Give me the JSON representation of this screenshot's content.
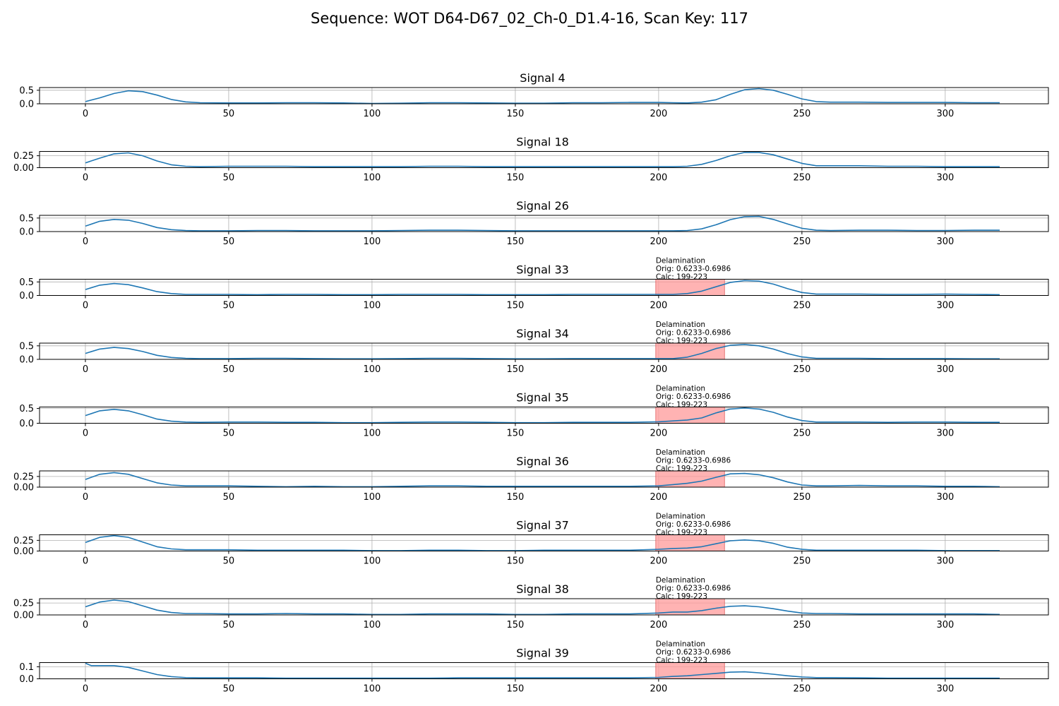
{
  "figure": {
    "title": "Sequence: WOT D64-D67_02_Ch-0_D1.4-16, Scan Key: 117"
  },
  "colors": {
    "line": "#1f77b4",
    "highlight_fill": "#ff9999",
    "highlight_stroke": "#e06060",
    "grid": "#b0b0b0",
    "axis": "#000000"
  },
  "chart_data": [
    {
      "type": "line",
      "title": "Signal 4",
      "xlim": [
        -16,
        336
      ],
      "ylim": [
        0,
        0.6
      ],
      "xticks": [
        0,
        50,
        100,
        150,
        200,
        250,
        300
      ],
      "yticks": [
        0.0,
        0.5
      ],
      "ytick_labels": [
        "0.0",
        "0.5"
      ],
      "grid": true,
      "x": [
        0,
        5,
        10,
        15,
        20,
        25,
        30,
        35,
        40,
        50,
        60,
        70,
        80,
        90,
        100,
        110,
        120,
        130,
        140,
        150,
        160,
        170,
        180,
        190,
        200,
        205,
        210,
        215,
        220,
        225,
        230,
        235,
        240,
        245,
        250,
        255,
        260,
        270,
        280,
        290,
        300,
        310,
        319
      ],
      "y": [
        0.08,
        0.22,
        0.38,
        0.48,
        0.45,
        0.32,
        0.16,
        0.07,
        0.04,
        0.03,
        0.03,
        0.04,
        0.04,
        0.03,
        0.01,
        0.02,
        0.04,
        0.04,
        0.03,
        0.02,
        0.02,
        0.04,
        0.04,
        0.05,
        0.05,
        0.04,
        0.03,
        0.06,
        0.15,
        0.35,
        0.52,
        0.56,
        0.5,
        0.35,
        0.18,
        0.08,
        0.06,
        0.06,
        0.05,
        0.05,
        0.05,
        0.04,
        0.04
      ],
      "annotation": null
    },
    {
      "type": "line",
      "title": "Signal 18",
      "xlim": [
        -16,
        336
      ],
      "ylim": [
        0,
        0.34
      ],
      "xticks": [
        0,
        50,
        100,
        150,
        200,
        250,
        300
      ],
      "yticks": [
        0.0,
        0.25
      ],
      "ytick_labels": [
        "0.00",
        "0.25"
      ],
      "grid": true,
      "x": [
        0,
        5,
        10,
        15,
        20,
        25,
        30,
        35,
        40,
        50,
        60,
        70,
        80,
        90,
        100,
        110,
        120,
        130,
        140,
        150,
        160,
        170,
        180,
        190,
        200,
        205,
        210,
        215,
        220,
        225,
        230,
        235,
        240,
        245,
        250,
        255,
        260,
        270,
        280,
        290,
        300,
        310,
        319
      ],
      "y": [
        0.1,
        0.2,
        0.29,
        0.31,
        0.25,
        0.14,
        0.06,
        0.03,
        0.02,
        0.03,
        0.03,
        0.03,
        0.02,
        0.02,
        0.02,
        0.02,
        0.03,
        0.03,
        0.02,
        0.02,
        0.02,
        0.02,
        0.02,
        0.02,
        0.02,
        0.02,
        0.03,
        0.07,
        0.15,
        0.25,
        0.32,
        0.32,
        0.27,
        0.18,
        0.09,
        0.04,
        0.04,
        0.04,
        0.03,
        0.03,
        0.02,
        0.02,
        0.02
      ],
      "annotation": null
    },
    {
      "type": "line",
      "title": "Signal 26",
      "xlim": [
        -16,
        336
      ],
      "ylim": [
        0,
        0.6
      ],
      "xticks": [
        0,
        50,
        100,
        150,
        200,
        250,
        300
      ],
      "yticks": [
        0.0,
        0.5
      ],
      "ytick_labels": [
        "0.0",
        "0.5"
      ],
      "grid": true,
      "x": [
        0,
        5,
        10,
        15,
        20,
        25,
        30,
        35,
        40,
        50,
        60,
        70,
        80,
        90,
        100,
        110,
        120,
        130,
        140,
        150,
        160,
        170,
        180,
        190,
        200,
        205,
        210,
        215,
        220,
        225,
        230,
        235,
        240,
        245,
        250,
        255,
        260,
        270,
        280,
        290,
        300,
        310,
        319
      ],
      "y": [
        0.2,
        0.38,
        0.45,
        0.42,
        0.3,
        0.15,
        0.07,
        0.04,
        0.03,
        0.03,
        0.04,
        0.04,
        0.03,
        0.03,
        0.03,
        0.04,
        0.05,
        0.05,
        0.04,
        0.03,
        0.03,
        0.03,
        0.03,
        0.03,
        0.03,
        0.03,
        0.04,
        0.1,
        0.25,
        0.44,
        0.55,
        0.56,
        0.45,
        0.28,
        0.12,
        0.05,
        0.04,
        0.05,
        0.05,
        0.04,
        0.04,
        0.05,
        0.05
      ],
      "annotation": null
    },
    {
      "type": "line",
      "title": "Signal 33",
      "xlim": [
        -16,
        336
      ],
      "ylim": [
        0,
        0.6
      ],
      "xticks": [
        0,
        50,
        100,
        150,
        200,
        250,
        300
      ],
      "yticks": [
        0.0,
        0.5
      ],
      "ytick_labels": [
        "0.0",
        "0.5"
      ],
      "grid": true,
      "x": [
        0,
        5,
        10,
        15,
        20,
        25,
        30,
        35,
        40,
        50,
        60,
        70,
        80,
        90,
        100,
        110,
        120,
        130,
        140,
        150,
        160,
        170,
        180,
        190,
        200,
        205,
        210,
        215,
        220,
        225,
        230,
        235,
        240,
        245,
        250,
        255,
        260,
        270,
        280,
        290,
        300,
        310,
        319
      ],
      "y": [
        0.22,
        0.38,
        0.44,
        0.4,
        0.28,
        0.14,
        0.07,
        0.04,
        0.04,
        0.04,
        0.03,
        0.04,
        0.04,
        0.03,
        0.03,
        0.04,
        0.04,
        0.04,
        0.03,
        0.03,
        0.03,
        0.04,
        0.04,
        0.04,
        0.04,
        0.04,
        0.07,
        0.16,
        0.32,
        0.48,
        0.55,
        0.53,
        0.42,
        0.25,
        0.11,
        0.05,
        0.05,
        0.05,
        0.04,
        0.04,
        0.05,
        0.04,
        0.03
      ],
      "annotation": {
        "x_start": 199,
        "x_end": 223,
        "lines": [
          "Delamination",
          "Orig: 0.6233-0.6986",
          "Calc: 199-223"
        ]
      }
    },
    {
      "type": "line",
      "title": "Signal 34",
      "xlim": [
        -16,
        336
      ],
      "ylim": [
        0,
        0.6
      ],
      "xticks": [
        0,
        50,
        100,
        150,
        200,
        250,
        300
      ],
      "yticks": [
        0.0,
        0.5
      ],
      "ytick_labels": [
        "0.0",
        "0.5"
      ],
      "grid": true,
      "x": [
        0,
        5,
        10,
        15,
        20,
        25,
        30,
        35,
        40,
        50,
        60,
        70,
        80,
        90,
        100,
        110,
        120,
        130,
        140,
        150,
        160,
        170,
        180,
        190,
        200,
        205,
        210,
        215,
        220,
        225,
        230,
        235,
        240,
        245,
        250,
        255,
        260,
        270,
        280,
        290,
        300,
        310,
        319
      ],
      "y": [
        0.22,
        0.38,
        0.44,
        0.4,
        0.29,
        0.15,
        0.07,
        0.04,
        0.03,
        0.03,
        0.04,
        0.04,
        0.03,
        0.02,
        0.02,
        0.03,
        0.04,
        0.04,
        0.03,
        0.02,
        0.02,
        0.03,
        0.03,
        0.03,
        0.03,
        0.03,
        0.08,
        0.22,
        0.4,
        0.52,
        0.55,
        0.5,
        0.38,
        0.21,
        0.09,
        0.04,
        0.04,
        0.04,
        0.03,
        0.03,
        0.03,
        0.02,
        0.02
      ],
      "annotation": {
        "x_start": 199,
        "x_end": 223,
        "lines": [
          "Delamination",
          "Orig: 0.6233-0.6986",
          "Calc: 199-223"
        ]
      }
    },
    {
      "type": "line",
      "title": "Signal 35",
      "xlim": [
        -16,
        336
      ],
      "ylim": [
        0,
        0.55
      ],
      "xticks": [
        0,
        50,
        100,
        150,
        200,
        250,
        300
      ],
      "yticks": [
        0.0,
        0.5
      ],
      "ytick_labels": [
        "0.0",
        "0.5"
      ],
      "grid": true,
      "x": [
        0,
        5,
        10,
        15,
        20,
        25,
        30,
        35,
        40,
        50,
        60,
        70,
        80,
        90,
        100,
        110,
        120,
        130,
        140,
        150,
        160,
        170,
        180,
        190,
        200,
        205,
        210,
        215,
        220,
        225,
        230,
        235,
        240,
        245,
        250,
        255,
        260,
        270,
        280,
        290,
        300,
        310,
        319
      ],
      "y": [
        0.26,
        0.42,
        0.47,
        0.42,
        0.29,
        0.14,
        0.07,
        0.04,
        0.03,
        0.04,
        0.04,
        0.03,
        0.03,
        0.02,
        0.02,
        0.03,
        0.04,
        0.04,
        0.03,
        0.02,
        0.02,
        0.03,
        0.03,
        0.03,
        0.05,
        0.08,
        0.11,
        0.18,
        0.35,
        0.48,
        0.52,
        0.48,
        0.37,
        0.21,
        0.09,
        0.04,
        0.04,
        0.04,
        0.03,
        0.04,
        0.04,
        0.03,
        0.03
      ],
      "annotation": {
        "x_start": 199,
        "x_end": 223,
        "lines": [
          "Delamination",
          "Orig: 0.6233-0.6986",
          "Calc: 199-223"
        ]
      }
    },
    {
      "type": "line",
      "title": "Signal 36",
      "xlim": [
        -16,
        336
      ],
      "ylim": [
        0,
        0.38
      ],
      "xticks": [
        0,
        50,
        100,
        150,
        200,
        250,
        300
      ],
      "yticks": [
        0.0,
        0.25
      ],
      "ytick_labels": [
        "0.00",
        "0.25"
      ],
      "grid": true,
      "x": [
        0,
        5,
        10,
        15,
        20,
        25,
        30,
        35,
        40,
        50,
        60,
        70,
        80,
        90,
        100,
        110,
        120,
        130,
        140,
        150,
        160,
        170,
        180,
        190,
        200,
        205,
        210,
        215,
        220,
        225,
        230,
        235,
        240,
        245,
        250,
        255,
        260,
        270,
        280,
        290,
        300,
        310,
        319
      ],
      "y": [
        0.18,
        0.3,
        0.34,
        0.3,
        0.2,
        0.1,
        0.05,
        0.03,
        0.03,
        0.03,
        0.02,
        0.01,
        0.02,
        0.01,
        0.01,
        0.02,
        0.03,
        0.03,
        0.02,
        0.02,
        0.02,
        0.02,
        0.02,
        0.02,
        0.03,
        0.06,
        0.09,
        0.14,
        0.23,
        0.31,
        0.32,
        0.29,
        0.22,
        0.12,
        0.05,
        0.03,
        0.03,
        0.04,
        0.03,
        0.03,
        0.02,
        0.02,
        0.01
      ],
      "annotation": {
        "x_start": 199,
        "x_end": 223,
        "lines": [
          "Delamination",
          "Orig: 0.6233-0.6986",
          "Calc: 199-223"
        ]
      }
    },
    {
      "type": "line",
      "title": "Signal 37",
      "xlim": [
        -16,
        336
      ],
      "ylim": [
        0,
        0.38
      ],
      "xticks": [
        0,
        50,
        100,
        150,
        200,
        250,
        300
      ],
      "yticks": [
        0.0,
        0.25
      ],
      "ytick_labels": [
        "0.00",
        "0.25"
      ],
      "grid": true,
      "x": [
        0,
        5,
        10,
        15,
        20,
        25,
        30,
        35,
        40,
        50,
        60,
        70,
        80,
        90,
        100,
        110,
        120,
        130,
        140,
        150,
        160,
        170,
        180,
        190,
        200,
        205,
        210,
        215,
        220,
        225,
        230,
        235,
        240,
        245,
        250,
        255,
        260,
        270,
        280,
        290,
        300,
        310,
        319
      ],
      "y": [
        0.2,
        0.32,
        0.36,
        0.32,
        0.21,
        0.1,
        0.05,
        0.03,
        0.03,
        0.03,
        0.02,
        0.02,
        0.02,
        0.02,
        0.01,
        0.01,
        0.02,
        0.02,
        0.01,
        0.01,
        0.02,
        0.02,
        0.02,
        0.02,
        0.04,
        0.06,
        0.07,
        0.1,
        0.17,
        0.24,
        0.26,
        0.24,
        0.18,
        0.09,
        0.04,
        0.02,
        0.02,
        0.02,
        0.02,
        0.02,
        0.01,
        0.01,
        0.01
      ],
      "annotation": {
        "x_start": 199,
        "x_end": 223,
        "lines": [
          "Delamination",
          "Orig: 0.6233-0.6986",
          "Calc: 199-223"
        ]
      }
    },
    {
      "type": "line",
      "title": "Signal 38",
      "xlim": [
        -16,
        336
      ],
      "ylim": [
        0,
        0.34
      ],
      "xticks": [
        0,
        50,
        100,
        150,
        200,
        250,
        300
      ],
      "yticks": [
        0.0,
        0.25
      ],
      "ytick_labels": [
        "0.00",
        "0.25"
      ],
      "grid": true,
      "x": [
        0,
        5,
        10,
        15,
        20,
        25,
        30,
        35,
        40,
        50,
        60,
        70,
        80,
        90,
        100,
        110,
        120,
        130,
        140,
        150,
        160,
        170,
        180,
        190,
        200,
        205,
        210,
        215,
        220,
        225,
        230,
        235,
        240,
        245,
        250,
        255,
        260,
        270,
        280,
        290,
        300,
        310,
        319
      ],
      "y": [
        0.17,
        0.27,
        0.31,
        0.28,
        0.19,
        0.1,
        0.05,
        0.03,
        0.03,
        0.02,
        0.02,
        0.03,
        0.02,
        0.02,
        0.01,
        0.01,
        0.02,
        0.02,
        0.02,
        0.01,
        0.01,
        0.02,
        0.02,
        0.02,
        0.04,
        0.06,
        0.06,
        0.09,
        0.14,
        0.18,
        0.19,
        0.17,
        0.13,
        0.08,
        0.04,
        0.03,
        0.03,
        0.02,
        0.02,
        0.02,
        0.02,
        0.02,
        0.01
      ],
      "annotation": {
        "x_start": 199,
        "x_end": 223,
        "lines": [
          "Delamination",
          "Orig: 0.6233-0.6986",
          "Calc: 199-223"
        ]
      }
    },
    {
      "type": "line",
      "title": "Signal 39",
      "xlim": [
        -16,
        336
      ],
      "ylim": [
        0,
        0.135
      ],
      "xticks": [
        0,
        50,
        100,
        150,
        200,
        250,
        300
      ],
      "yticks": [
        0.0,
        0.1
      ],
      "ytick_labels": [
        "0.0",
        "0.1"
      ],
      "grid": true,
      "x": [
        0,
        2,
        5,
        10,
        15,
        20,
        25,
        30,
        35,
        40,
        50,
        60,
        70,
        80,
        90,
        100,
        110,
        120,
        130,
        140,
        150,
        160,
        170,
        180,
        190,
        200,
        205,
        210,
        215,
        220,
        225,
        230,
        235,
        240,
        245,
        250,
        255,
        260,
        270,
        280,
        290,
        300,
        310,
        319
      ],
      "y": [
        0.13,
        0.11,
        0.11,
        0.11,
        0.095,
        0.065,
        0.035,
        0.018,
        0.01,
        0.008,
        0.008,
        0.008,
        0.005,
        0.005,
        0.005,
        0.005,
        0.005,
        0.005,
        0.008,
        0.008,
        0.008,
        0.008,
        0.008,
        0.008,
        0.008,
        0.012,
        0.02,
        0.025,
        0.035,
        0.045,
        0.055,
        0.058,
        0.05,
        0.038,
        0.025,
        0.015,
        0.01,
        0.01,
        0.008,
        0.006,
        0.006,
        0.006,
        0.005,
        0.005
      ],
      "annotation": {
        "x_start": 199,
        "x_end": 223,
        "lines": [
          "Delamination",
          "Orig: 0.6233-0.6986",
          "Calc: 199-223"
        ]
      }
    }
  ]
}
